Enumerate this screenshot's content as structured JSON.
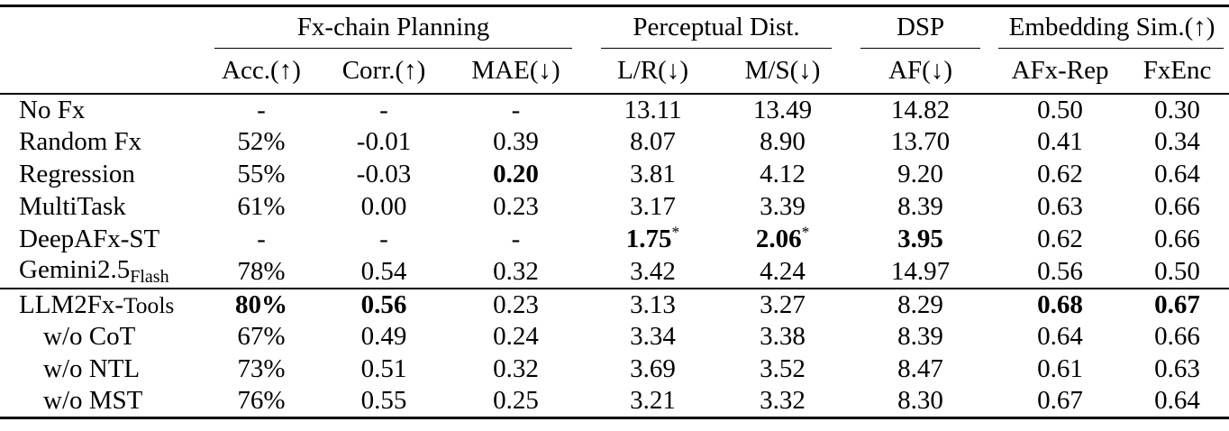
{
  "colors": {
    "text": "#000000",
    "background": "#ffffff",
    "rule": "#000000"
  },
  "table": {
    "col_groups": [
      {
        "label": "Fx-chain Planning"
      },
      {
        "label": "Perceptual Dist."
      },
      {
        "label": "DSP"
      },
      {
        "label": "Embedding Sim.(↑)"
      }
    ],
    "sub_headers": [
      "Acc.(↑)",
      "Corr.(↑)",
      "MAE(↓)",
      "L/R(↓)",
      "M/S(↓)",
      "AF(↓)",
      "AFx-Rep",
      "FxEnc"
    ],
    "sections": [
      {
        "rows": [
          {
            "label": "No Fx",
            "cells": [
              "-",
              "-",
              "-",
              "13.11",
              "13.49",
              "14.82",
              "0.50",
              "0.30"
            ]
          },
          {
            "label": "Random Fx",
            "cells": [
              "52%",
              "-0.01",
              "0.39",
              "8.07",
              "8.90",
              "13.70",
              "0.41",
              "0.34"
            ]
          },
          {
            "label": "Regression",
            "cells": [
              "55%",
              "-0.03",
              {
                "t": "0.20",
                "b": true
              },
              "3.81",
              "4.12",
              "9.20",
              "0.62",
              "0.64"
            ]
          },
          {
            "label": "MultiTask",
            "cells": [
              "61%",
              "0.00",
              "0.23",
              "3.17",
              "3.39",
              "8.39",
              "0.63",
              "0.66"
            ]
          },
          {
            "label": "DeepAFx-ST",
            "cells": [
              "-",
              "-",
              "-",
              {
                "t": "1.75",
                "b": true,
                "sup": "*"
              },
              {
                "t": "2.06",
                "b": true,
                "sup": "*"
              },
              {
                "t": "3.95",
                "b": true
              },
              "0.62",
              "0.66"
            ]
          },
          {
            "label": "Gemini2.5",
            "label_sub": "Flash",
            "cells": [
              "78%",
              "0.54",
              "0.32",
              "3.42",
              "4.24",
              "14.97",
              "0.56",
              "0.50"
            ]
          }
        ]
      },
      {
        "rows": [
          {
            "label": "LLM2Fx-",
            "label_suffix": "Tools",
            "cells": [
              {
                "t": "80%",
                "b": true
              },
              {
                "t": "0.56",
                "b": true
              },
              "0.23",
              "3.13",
              "3.27",
              "8.29",
              {
                "t": "0.68",
                "b": true
              },
              {
                "t": "0.67",
                "b": true
              }
            ]
          },
          {
            "label": "w/o CoT",
            "indent": true,
            "cells": [
              "67%",
              "0.49",
              "0.24",
              "3.34",
              "3.38",
              "8.39",
              "0.64",
              "0.66"
            ]
          },
          {
            "label": "w/o NTL",
            "indent": true,
            "cells": [
              "73%",
              "0.51",
              "0.32",
              "3.69",
              "3.52",
              "8.47",
              "0.61",
              "0.63"
            ]
          },
          {
            "label": "w/o MST",
            "indent": true,
            "cells": [
              "76%",
              "0.55",
              "0.25",
              "3.21",
              "3.32",
              "8.30",
              "0.67",
              "0.64"
            ]
          }
        ]
      }
    ]
  }
}
